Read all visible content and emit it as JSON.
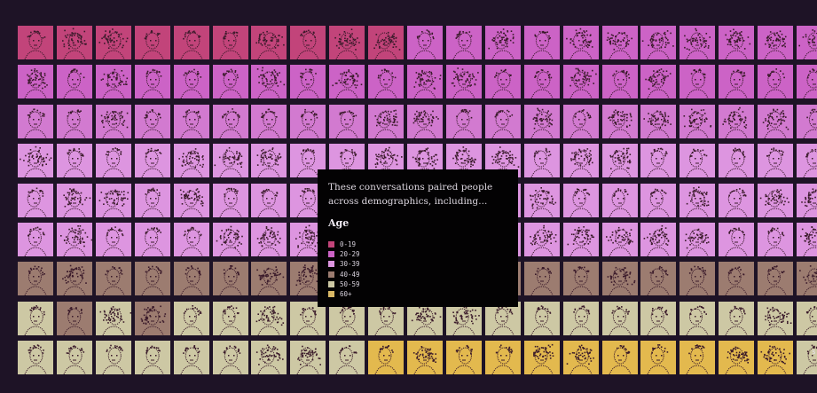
{
  "intro_text": "These conversations paired people across demographics, including...",
  "legend": {
    "title": "Age",
    "items": [
      {
        "label": "0-19",
        "color": "#c2447a"
      },
      {
        "label": "20-29",
        "color": "#cc63c6"
      },
      {
        "label": "30-39",
        "color": "#dd95e0"
      },
      {
        "label": "40-49",
        "color": "#9c7c70"
      },
      {
        "label": "50-59",
        "color": "#cdc8a4"
      },
      {
        "label": "60+",
        "color": "#d9b866"
      }
    ]
  },
  "edge_mark": "s",
  "grid": {
    "rows": [
      {
        "group": "0-19",
        "shade": "#c2447a",
        "alt_shade": "#cc63c6"
      },
      {
        "group": "20-29",
        "shade": "#cc63c6"
      },
      {
        "group": "20-29",
        "shade": "#d27ad0"
      },
      {
        "group": "30-39",
        "shade": "#dd95e0"
      },
      {
        "group": "30-39",
        "shade": "#dd95e0"
      },
      {
        "group": "30-39",
        "shade": "#dd95e0"
      },
      {
        "group": "40-49",
        "shade": "#9c7c70"
      },
      {
        "group": "50-59",
        "shade": "#cdc8a4",
        "alt_shade": "#9c7c70"
      },
      {
        "group": "60+",
        "shade": "#cdc8a4",
        "alt_shade": "#e3b94e"
      }
    ],
    "ink_color": "#3a1a2a"
  }
}
